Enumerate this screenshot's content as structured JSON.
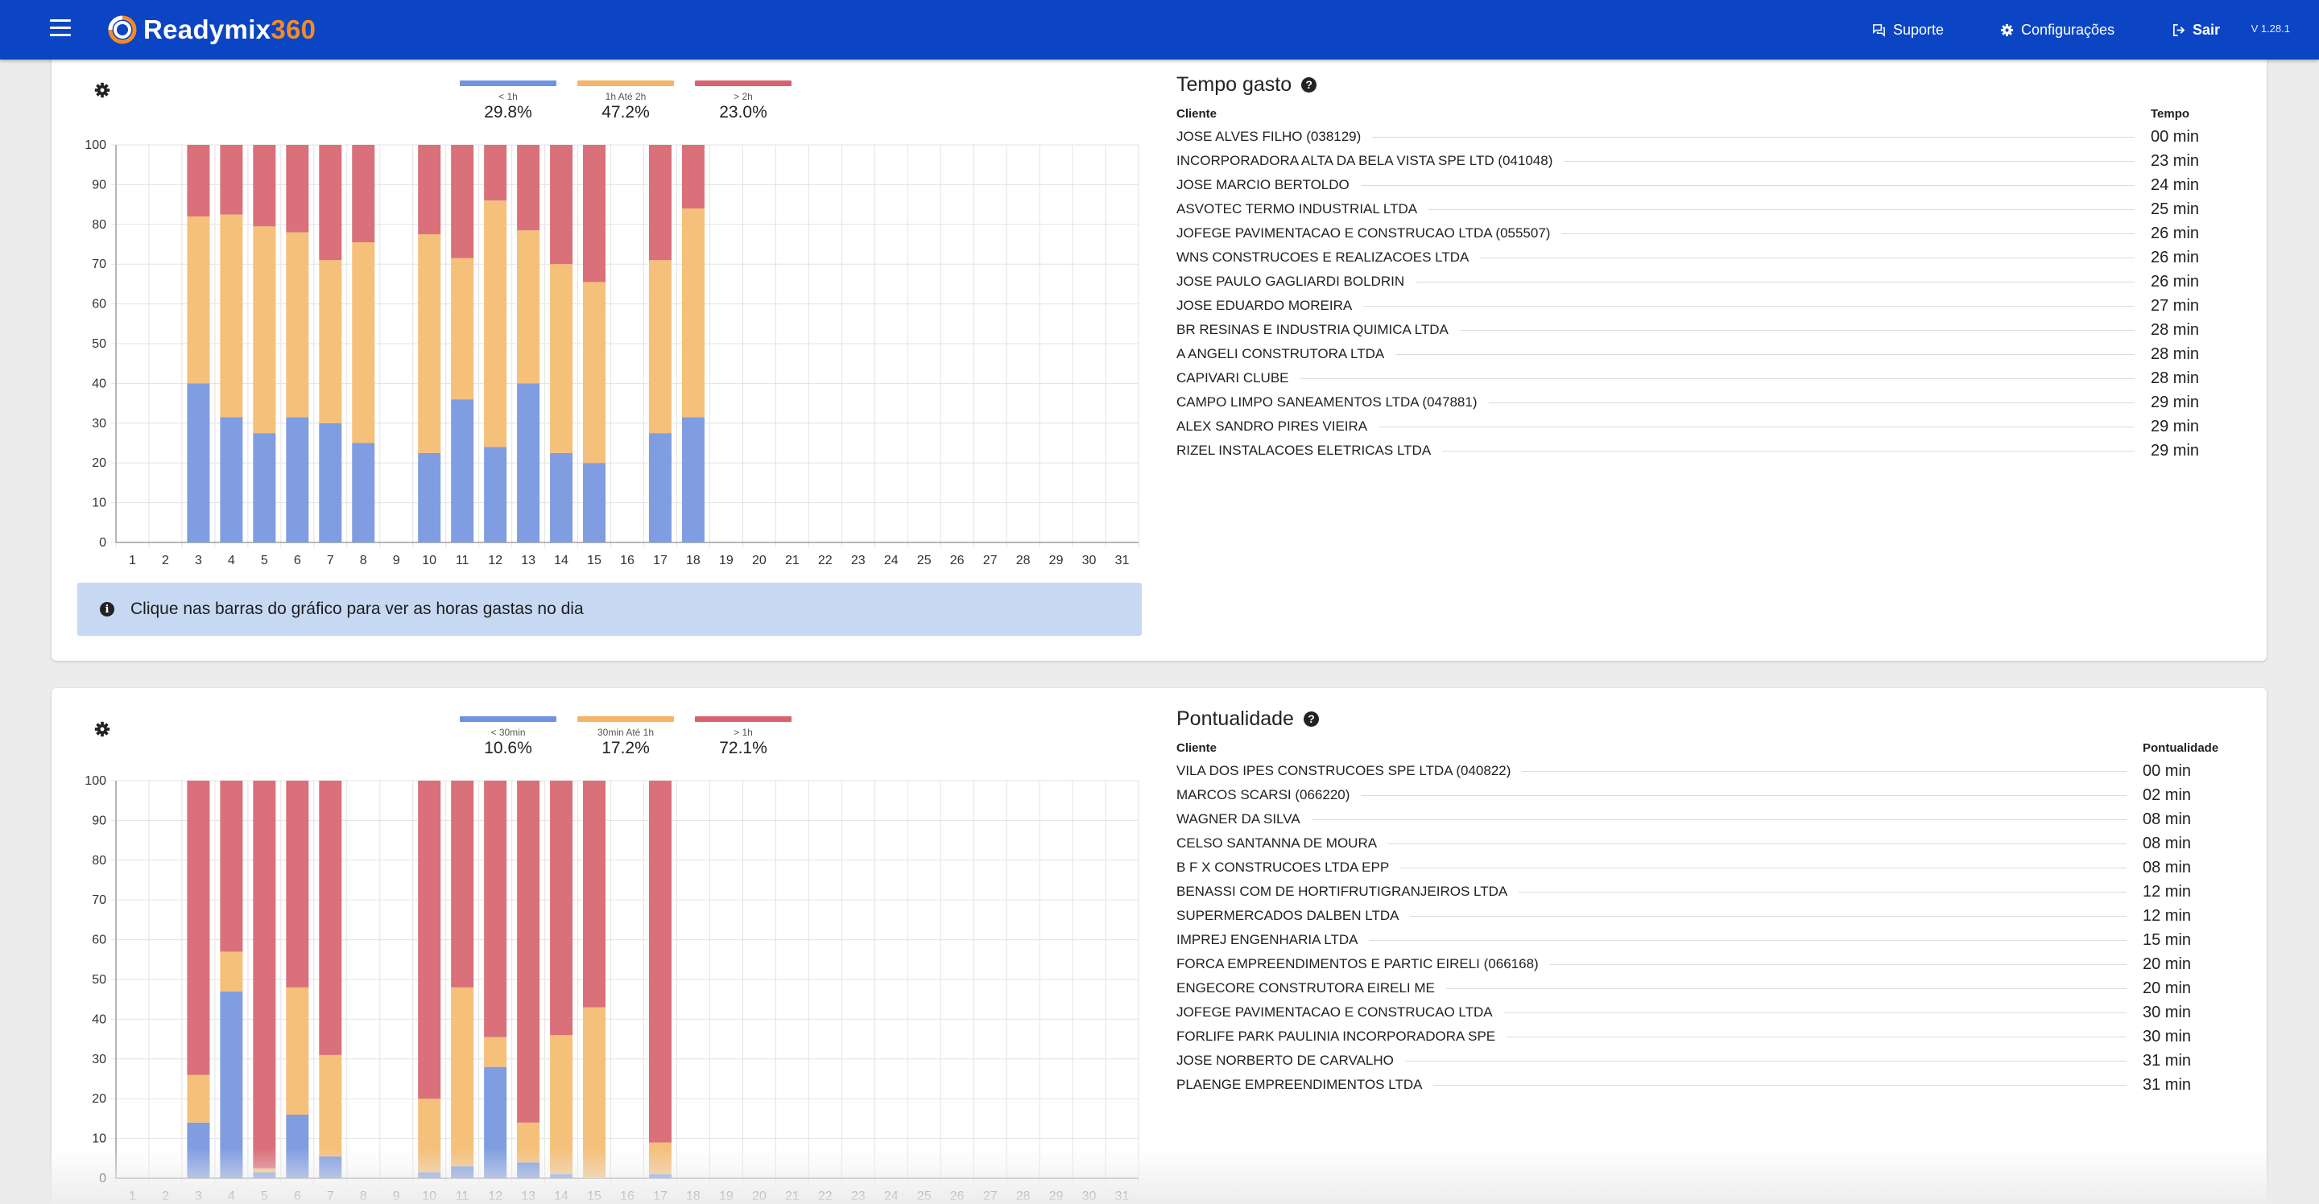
{
  "app": {
    "brand_main": "Readymix",
    "brand_accent": "360",
    "menu_icon": "hamburger-menu-icon",
    "nav": [
      {
        "label": "Suporte",
        "icon": "chat-icon"
      },
      {
        "label": "Configurações",
        "icon": "gear-icon"
      },
      {
        "label": "Sair",
        "icon": "logout-icon"
      }
    ],
    "version": "V 1.28.1",
    "colors": {
      "topbar": "#0c45c4",
      "accent": "#f28c28",
      "series_blue": "#7f9de0",
      "series_orange": "#f5c07a",
      "series_red": "#d9707a",
      "info_bg": "#c7d9f2"
    }
  },
  "time_card": {
    "legend": [
      {
        "label": "< 1h",
        "pct": "29.8%",
        "color": "#6f93e2"
      },
      {
        "label": "1h Até 2h",
        "pct": "47.2%",
        "color": "#f6b566"
      },
      {
        "label": "> 2h",
        "pct": "23.0%",
        "color": "#d8636d"
      }
    ],
    "info_text": "Clique nas barras do gráfico para ver as horas gastas no dia",
    "title": "Tempo gasto",
    "col_client": "Cliente",
    "col_value": "Tempo",
    "rows": [
      {
        "name": "JOSE ALVES FILHO (038129)",
        "value": "00 min"
      },
      {
        "name": "INCORPORADORA ALTA DA BELA VISTA SPE LTD (041048)",
        "value": "23 min"
      },
      {
        "name": "JOSE MARCIO BERTOLDO",
        "value": "24 min"
      },
      {
        "name": "ASVOTEC TERMO INDUSTRIAL LTDA",
        "value": "25 min"
      },
      {
        "name": "JOFEGE PAVIMENTACAO E CONSTRUCAO LTDA (055507)",
        "value": "26 min"
      },
      {
        "name": "WNS CONSTRUCOES E REALIZACOES LTDA",
        "value": "26 min"
      },
      {
        "name": "JOSE PAULO GAGLIARDI BOLDRIN",
        "value": "26 min"
      },
      {
        "name": "JOSE EDUARDO MOREIRA",
        "value": "27 min"
      },
      {
        "name": "BR RESINAS E INDUSTRIA QUIMICA LTDA",
        "value": "28 min"
      },
      {
        "name": "A ANGELI CONSTRUTORA LTDA",
        "value": "28 min"
      },
      {
        "name": "CAPIVARI CLUBE",
        "value": "28 min"
      },
      {
        "name": "CAMPO LIMPO SANEAMENTOS LTDA (047881)",
        "value": "29 min"
      },
      {
        "name": "ALEX SANDRO PIRES VIEIRA",
        "value": "29 min"
      },
      {
        "name": "RIZEL INSTALACOES ELETRICAS LTDA",
        "value": "29 min"
      }
    ]
  },
  "punct_card": {
    "legend": [
      {
        "label": "< 30min",
        "pct": "10.6%",
        "color": "#6f93e2"
      },
      {
        "label": "30min Até 1h",
        "pct": "17.2%",
        "color": "#f6b566"
      },
      {
        "label": "> 1h",
        "pct": "72.1%",
        "color": "#d8636d"
      }
    ],
    "title": "Pontualidade",
    "col_client": "Cliente",
    "col_value": "Pontualidade",
    "rows": [
      {
        "name": "VILA DOS IPES CONSTRUCOES SPE LTDA (040822)",
        "value": "00 min"
      },
      {
        "name": "MARCOS SCARSI (066220)",
        "value": "02 min"
      },
      {
        "name": "WAGNER DA SILVA",
        "value": "08 min"
      },
      {
        "name": "CELSO SANTANNA DE MOURA",
        "value": "08 min"
      },
      {
        "name": "B F X CONSTRUCOES LTDA EPP",
        "value": "08 min"
      },
      {
        "name": "BENASSI COM DE HORTIFRUTIGRANJEIROS LTDA",
        "value": "12 min"
      },
      {
        "name": "SUPERMERCADOS DALBEN LTDA",
        "value": "12 min"
      },
      {
        "name": "IMPREJ ENGENHARIA LTDA",
        "value": "15 min"
      },
      {
        "name": "FORCA EMPREENDIMENTOS E PARTIC EIRELI (066168)",
        "value": "20 min"
      },
      {
        "name": "ENGECORE CONSTRUTORA EIRELI ME",
        "value": "20 min"
      },
      {
        "name": "JOFEGE PAVIMENTACAO E CONSTRUCAO LTDA",
        "value": "30 min"
      },
      {
        "name": "FORLIFE PARK PAULINIA INCORPORADORA SPE",
        "value": "30 min"
      },
      {
        "name": "JOSE NORBERTO DE CARVALHO",
        "value": "31 min"
      },
      {
        "name": "PLAENGE EMPREENDIMENTOS LTDA",
        "value": "31 min"
      }
    ]
  },
  "chart_data": [
    {
      "type": "bar",
      "stacked": true,
      "categories": [
        "1",
        "2",
        "3",
        "4",
        "5",
        "6",
        "7",
        "8",
        "9",
        "10",
        "11",
        "12",
        "13",
        "14",
        "15",
        "16",
        "17",
        "18",
        "19",
        "20",
        "21",
        "22",
        "23",
        "24",
        "25",
        "26",
        "27",
        "28",
        "29",
        "30",
        "31"
      ],
      "ylim": [
        0,
        100
      ],
      "yticks": [
        0,
        10,
        20,
        30,
        40,
        50,
        60,
        70,
        80,
        90,
        100
      ],
      "grid": true,
      "legend_position": "top",
      "series": [
        {
          "name": "< 1h",
          "color": "#7f9de0",
          "values": [
            0,
            0,
            40,
            31.5,
            27.5,
            31.5,
            30,
            25,
            0,
            22.5,
            36,
            24,
            40,
            22.5,
            20,
            0,
            27.5,
            31.5,
            0,
            0,
            0,
            0,
            0,
            0,
            0,
            0,
            0,
            0,
            0,
            0,
            0
          ]
        },
        {
          "name": "1h Até 2h",
          "color": "#f5c07a",
          "values": [
            0,
            0,
            42,
            51,
            52,
            46.5,
            41,
            50.5,
            0,
            55,
            35.5,
            62,
            38.5,
            47.5,
            45.5,
            0,
            43.5,
            52.5,
            0,
            0,
            0,
            0,
            0,
            0,
            0,
            0,
            0,
            0,
            0,
            0,
            0
          ]
        },
        {
          "name": "> 2h",
          "color": "#d9707a",
          "values": [
            0,
            0,
            18,
            17.5,
            20.5,
            22,
            29,
            24.5,
            0,
            22.5,
            28.5,
            14,
            21.5,
            30,
            34.5,
            0,
            29,
            16,
            0,
            0,
            0,
            0,
            0,
            0,
            0,
            0,
            0,
            0,
            0,
            0,
            0
          ]
        }
      ]
    },
    {
      "type": "bar",
      "stacked": true,
      "categories": [
        "1",
        "2",
        "3",
        "4",
        "5",
        "6",
        "7",
        "8",
        "9",
        "10",
        "11",
        "12",
        "13",
        "14",
        "15",
        "16",
        "17",
        "18",
        "19",
        "20",
        "21",
        "22",
        "23",
        "24",
        "25",
        "26",
        "27",
        "28",
        "29",
        "30",
        "31"
      ],
      "ylim": [
        0,
        100
      ],
      "yticks": [
        0,
        10,
        20,
        30,
        40,
        50,
        60,
        70,
        80,
        90,
        100
      ],
      "grid": true,
      "legend_position": "top",
      "series": [
        {
          "name": "< 30min",
          "color": "#7f9de0",
          "values": [
            0,
            0,
            14,
            47,
            1.5,
            16,
            5.5,
            0,
            0,
            1.5,
            3,
            28,
            4,
            1,
            0,
            0,
            1,
            0,
            0,
            0,
            0,
            0,
            0,
            0,
            0,
            0,
            0,
            0,
            0,
            0,
            0
          ]
        },
        {
          "name": "30min Até 1h",
          "color": "#f5c07a",
          "values": [
            0,
            0,
            12,
            10,
            1,
            32,
            25.5,
            0,
            0,
            18.5,
            45,
            7.5,
            10,
            35,
            43,
            0,
            8,
            0,
            0,
            0,
            0,
            0,
            0,
            0,
            0,
            0,
            0,
            0,
            0,
            0,
            0
          ]
        },
        {
          "name": "> 1h",
          "color": "#d9707a",
          "values": [
            0,
            0,
            74,
            43,
            97.5,
            52,
            69,
            0,
            0,
            80,
            52,
            64.5,
            86,
            64,
            57,
            0,
            91,
            0,
            0,
            0,
            0,
            0,
            0,
            0,
            0,
            0,
            0,
            0,
            0,
            0,
            0
          ]
        }
      ]
    }
  ]
}
